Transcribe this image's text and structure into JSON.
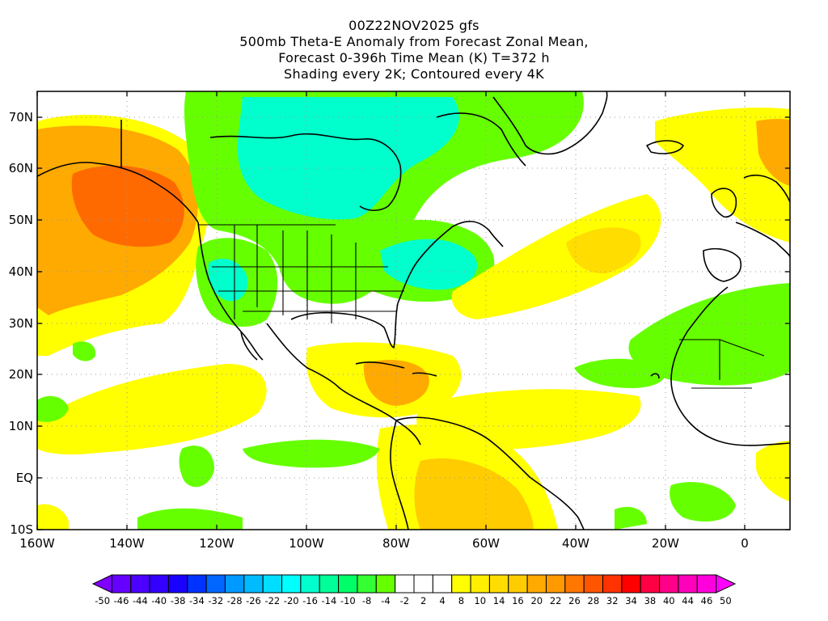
{
  "title": {
    "lines": [
      "00Z22NOV2025 gfs",
      "500mb Theta-E Anomaly from Forecast Zonal Mean,",
      "Forecast 0-396h Time Mean (K) T=372 h",
      "Shading every 2K; Contoured every 4K"
    ]
  },
  "map": {
    "x_ticks": [
      "160W",
      "140W",
      "120W",
      "100W",
      "80W",
      "60W",
      "40W",
      "20W",
      "0"
    ],
    "y_ticks": [
      "70N",
      "60N",
      "50N",
      "40N",
      "30N",
      "20N",
      "10N",
      "EQ",
      "10S"
    ],
    "grid": "dotted"
  },
  "colorbar": {
    "labels": [
      "-50",
      "-46",
      "-44",
      "-40",
      "-38",
      "-34",
      "-32",
      "-28",
      "-26",
      "-22",
      "-20",
      "-16",
      "-14",
      "-10",
      "-8",
      "-4",
      "-2",
      "2",
      "4",
      "8",
      "10",
      "14",
      "16",
      "20",
      "22",
      "26",
      "28",
      "32",
      "34",
      "38",
      "40",
      "44",
      "46",
      "50"
    ],
    "colors": [
      "#7f00ff",
      "#6600ff",
      "#4c00ff",
      "#3300ff",
      "#1a00ff",
      "#0033ff",
      "#0066ff",
      "#0099ff",
      "#00bbff",
      "#00ddff",
      "#00ffff",
      "#00ffcc",
      "#00ff99",
      "#00ff66",
      "#33ff33",
      "#66ff00",
      "#ffffff",
      "#ffffff",
      "#ffffff",
      "#ffff00",
      "#ffee00",
      "#ffdd00",
      "#ffcc00",
      "#ffaa00",
      "#ff9900",
      "#ff7700",
      "#ff5500",
      "#ff3300",
      "#ff0000",
      "#ff0044",
      "#ff0088",
      "#ff00bb",
      "#ff00dd",
      "#ff00ff"
    ]
  },
  "legend_colors": {
    "warm_strong": "#ff6a00",
    "warm_mid": "#ffaa00",
    "warm_light": "#ffff00",
    "cold_green": "#66ff00",
    "cold_cyan": "#00ffcc"
  }
}
